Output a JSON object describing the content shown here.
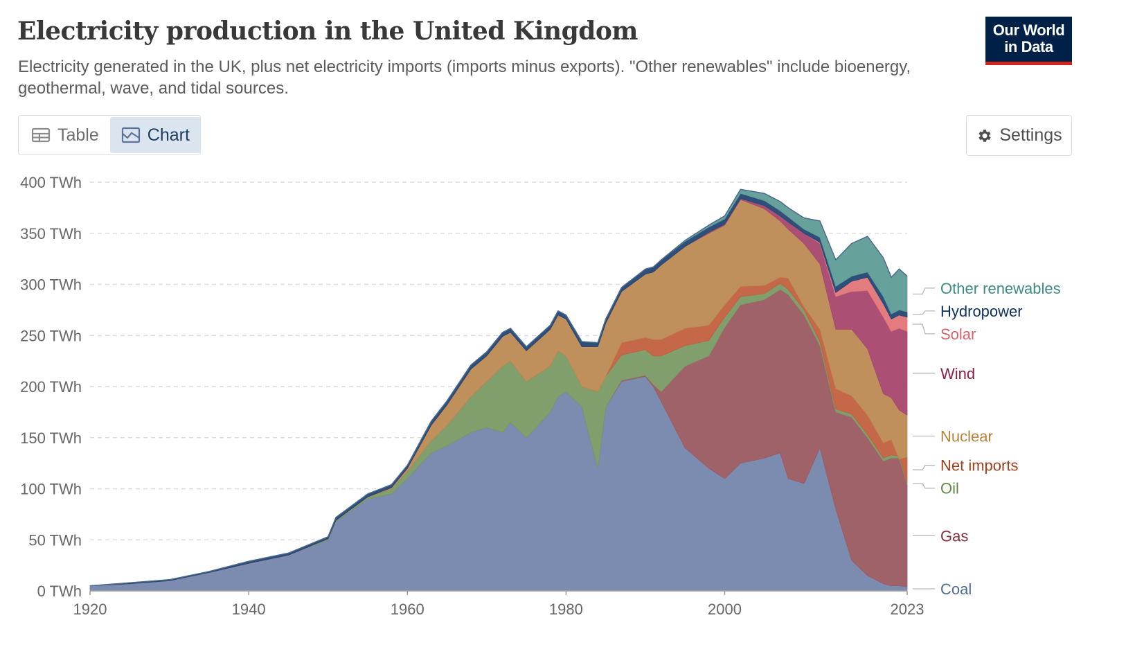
{
  "header": {
    "title": "Electricity production in the United Kingdom",
    "subtitle": "Electricity generated in the UK, plus net electricity imports (imports minus exports). \"Other renewables\" include bioenergy, geothermal, wave, and tidal sources.",
    "logo_line1": "Our World",
    "logo_line2": "in Data"
  },
  "tabs": [
    {
      "label": "Table",
      "icon": "table-icon",
      "active": false
    },
    {
      "label": "Chart",
      "icon": "chart-icon",
      "active": true
    }
  ],
  "settings": {
    "label": "Settings",
    "icon": "gear-icon"
  },
  "colors": {
    "Coal": "#7586ad",
    "Gas": "#9b5a61",
    "Oil": "#7a9a64",
    "Net imports": "#c2603f",
    "Nuclear": "#bc8a52",
    "Wind": "#a8466e",
    "Solar": "#e07578",
    "Hydropower": "#234672",
    "Other renewables": "#5f9c96"
  },
  "label_colors": {
    "Coal": "#4e6a9a",
    "Gas": "#883039",
    "Oil": "#5b8b44",
    "Net imports": "#a0401d",
    "Nuclear": "#b8823a",
    "Wind": "#8c1d45",
    "Solar": "#d9626a",
    "Hydropower": "#0d2f5e",
    "Other renewables": "#3c8a83"
  },
  "chart_data": {
    "type": "area",
    "stacked": true,
    "x": [
      1920,
      1925,
      1930,
      1935,
      1940,
      1945,
      1950,
      1951,
      1955,
      1958,
      1960,
      1963,
      1965,
      1968,
      1970,
      1972,
      1973,
      1975,
      1978,
      1979,
      1980,
      1982,
      1984,
      1985,
      1987,
      1990,
      1991,
      1992,
      1995,
      1998,
      2000,
      2002,
      2005,
      2007,
      2008,
      2010,
      2012,
      2014,
      2016,
      2018,
      2020,
      2021,
      2022,
      2023
    ],
    "series": [
      {
        "name": "Coal",
        "values": [
          5,
          7,
          10,
          18,
          27,
          35,
          50,
          68,
          90,
          95,
          110,
          135,
          142,
          155,
          160,
          155,
          165,
          150,
          175,
          190,
          195,
          180,
          120,
          180,
          205,
          210,
          200,
          185,
          140,
          120,
          110,
          125,
          130,
          135,
          110,
          105,
          140,
          80,
          30,
          15,
          7,
          5,
          5,
          4
        ]
      },
      {
        "name": "Gas",
        "values": [
          0,
          0,
          0,
          0,
          0,
          0,
          0,
          0,
          0,
          0,
          0,
          0,
          0,
          0,
          0,
          0,
          0,
          0,
          0,
          0,
          0,
          0,
          0,
          0,
          1,
          1,
          2,
          10,
          80,
          110,
          148,
          155,
          155,
          160,
          180,
          165,
          100,
          95,
          140,
          135,
          120,
          125,
          125,
          100
        ]
      },
      {
        "name": "Oil",
        "values": [
          0,
          0,
          0,
          0,
          0,
          0,
          1,
          1,
          2,
          5,
          7,
          12,
          20,
          35,
          45,
          65,
          60,
          55,
          45,
          45,
          35,
          20,
          75,
          30,
          25,
          25,
          28,
          35,
          20,
          15,
          10,
          8,
          6,
          6,
          5,
          5,
          4,
          3,
          3,
          3,
          3,
          3,
          2,
          2
        ]
      },
      {
        "name": "Net imports",
        "values": [
          0,
          0,
          0,
          0,
          0,
          0,
          0,
          0,
          0,
          0,
          0,
          0,
          0,
          0,
          0,
          0,
          0,
          0,
          0,
          0,
          0,
          0,
          0,
          0,
          12,
          12,
          16,
          16,
          17,
          15,
          12,
          10,
          8,
          6,
          11,
          3,
          12,
          20,
          18,
          19,
          15,
          15,
          -3,
          25
        ]
      },
      {
        "name": "Nuclear",
        "values": [
          0,
          0,
          0,
          0,
          0,
          0,
          0,
          0,
          0,
          1,
          3,
          15,
          20,
          27,
          25,
          29,
          28,
          30,
          36,
          35,
          36,
          39,
          44,
          52,
          50,
          62,
          66,
          73,
          80,
          90,
          78,
          85,
          75,
          55,
          48,
          62,
          64,
          58,
          65,
          65,
          48,
          41,
          48,
          41
        ]
      },
      {
        "name": "Wind",
        "values": [
          0,
          0,
          0,
          0,
          0,
          0,
          0,
          0,
          0,
          0,
          0,
          0,
          0,
          0,
          0,
          0,
          0,
          0,
          0,
          0,
          0,
          0,
          0,
          0,
          0,
          0,
          0,
          0,
          0,
          1,
          1,
          1,
          3,
          5,
          7,
          10,
          20,
          32,
          37,
          57,
          75,
          65,
          80,
          82
        ]
      },
      {
        "name": "Solar",
        "values": [
          0,
          0,
          0,
          0,
          0,
          0,
          0,
          0,
          0,
          0,
          0,
          0,
          0,
          0,
          0,
          0,
          0,
          0,
          0,
          0,
          0,
          0,
          0,
          0,
          0,
          0,
          0,
          0,
          0,
          0,
          0,
          0,
          0,
          0,
          0,
          0,
          1,
          4,
          10,
          13,
          13,
          12,
          13,
          14
        ]
      },
      {
        "name": "Hydropower",
        "values": [
          0,
          1,
          1,
          1,
          2,
          2,
          2,
          3,
          3,
          3,
          3,
          4,
          4,
          4,
          4,
          4,
          4,
          4,
          4,
          4,
          4,
          5,
          4,
          4,
          4,
          5,
          5,
          5,
          5,
          5,
          5,
          5,
          5,
          5,
          5,
          4,
          5,
          6,
          5,
          5,
          7,
          5,
          5,
          5
        ]
      },
      {
        "name": "Other renewables",
        "values": [
          0,
          0,
          0,
          0,
          0,
          0,
          0,
          0,
          0,
          0,
          0,
          0,
          0,
          0,
          0,
          0,
          0,
          0,
          0,
          0,
          0,
          0,
          0,
          0,
          0,
          0,
          0,
          0,
          1,
          2,
          3,
          4,
          7,
          9,
          9,
          11,
          16,
          26,
          32,
          35,
          38,
          36,
          40,
          35
        ]
      }
    ],
    "legend_order": [
      "Other renewables",
      "Hydropower",
      "Solar",
      "Wind",
      "Nuclear",
      "Net imports",
      "Oil",
      "Gas",
      "Coal"
    ],
    "yticks": [
      "0 TWh",
      "50 TWh",
      "100 TWh",
      "150 TWh",
      "200 TWh",
      "250 TWh",
      "300 TWh",
      "350 TWh",
      "400 TWh"
    ],
    "ytick_values": [
      0,
      50,
      100,
      150,
      200,
      250,
      300,
      350,
      400
    ],
    "xticks": [
      "1920",
      "1940",
      "1960",
      "1980",
      "2000",
      "2023"
    ],
    "xtick_values": [
      1920,
      1940,
      1960,
      1980,
      2000,
      2023
    ],
    "xlim": [
      1920,
      2023
    ],
    "ylim": [
      0,
      400
    ],
    "grid": true,
    "legend_placement": "right (inline labels)"
  }
}
